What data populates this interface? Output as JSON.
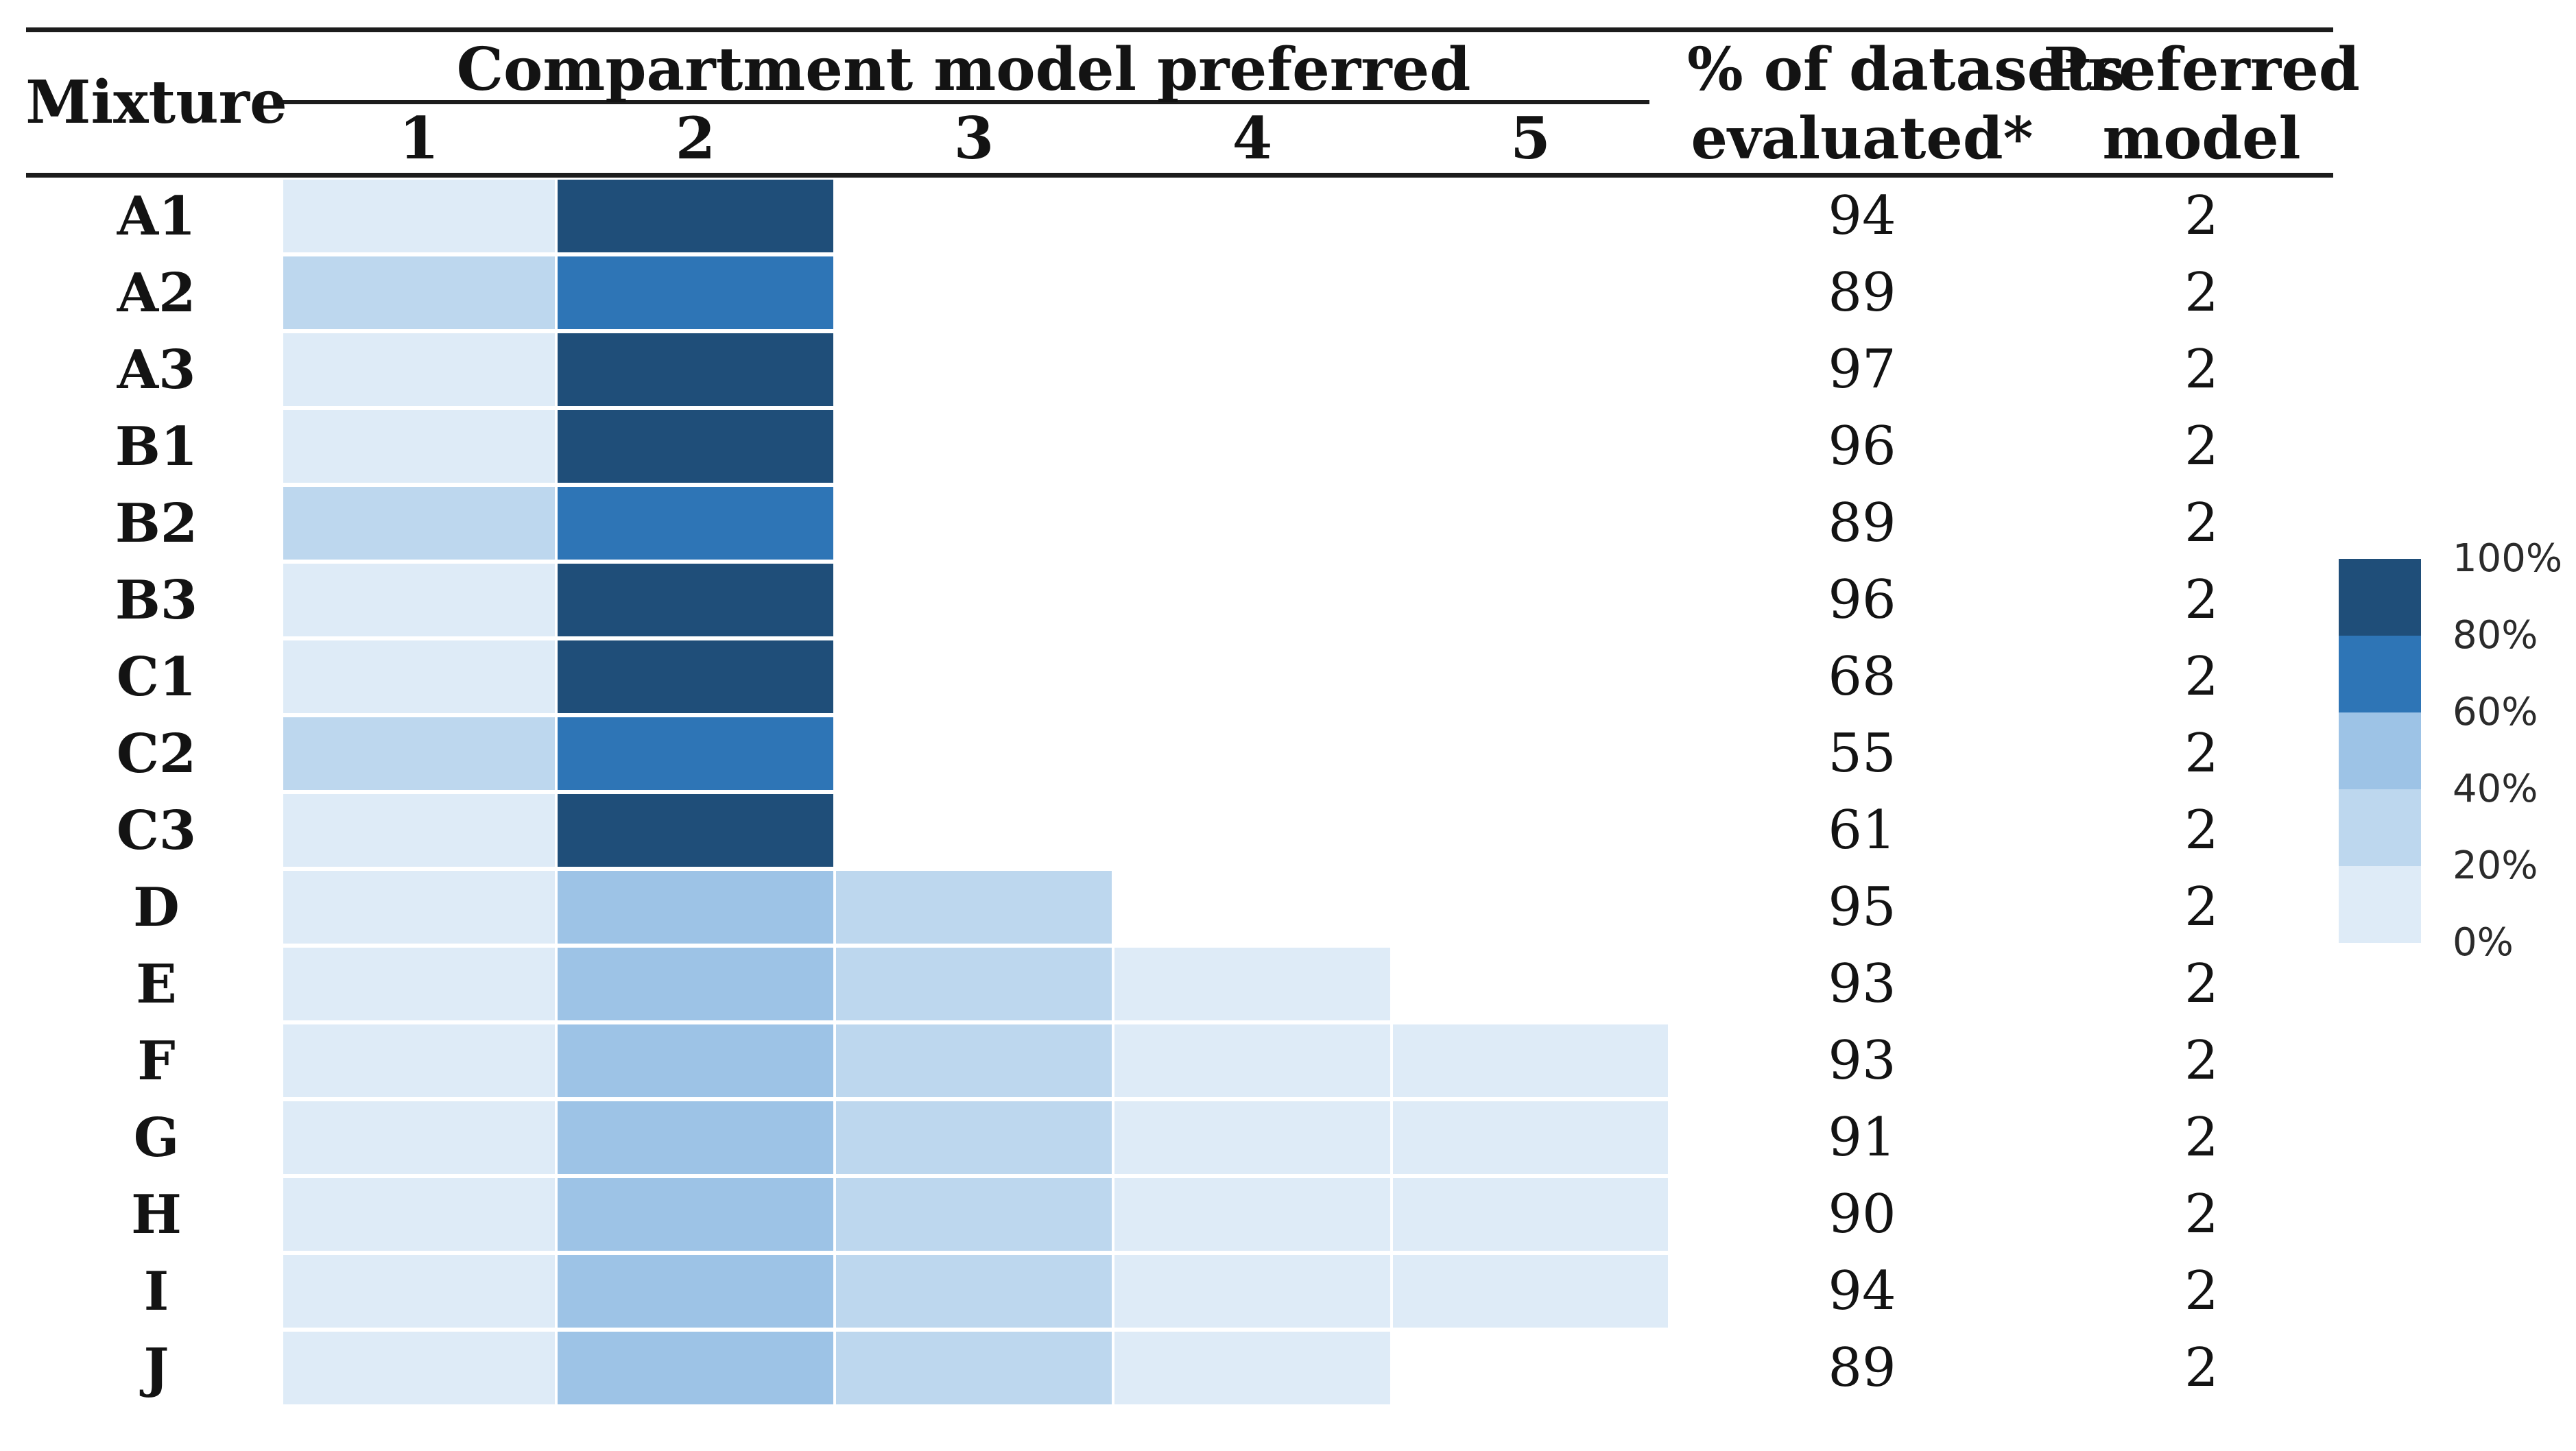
{
  "table": {
    "mixture_header": "Mixture",
    "group_header": "Compartment model preferred",
    "model_columns": [
      "1",
      "2",
      "3",
      "4",
      "5"
    ],
    "datasets_header_line1": "% of datasets",
    "datasets_header_line2": "evaluated*",
    "preferred_header_line1": "Preferred",
    "preferred_header_line2": "model",
    "rows": [
      {
        "mixture": "A1",
        "levels": [
          20,
          100,
          null,
          null,
          null
        ],
        "datasets": "94",
        "preferred": "2"
      },
      {
        "mixture": "A2",
        "levels": [
          40,
          80,
          null,
          null,
          null
        ],
        "datasets": "89",
        "preferred": "2"
      },
      {
        "mixture": "A3",
        "levels": [
          20,
          100,
          null,
          null,
          null
        ],
        "datasets": "97",
        "preferred": "2"
      },
      {
        "mixture": "B1",
        "levels": [
          20,
          100,
          null,
          null,
          null
        ],
        "datasets": "96",
        "preferred": "2"
      },
      {
        "mixture": "B2",
        "levels": [
          40,
          80,
          null,
          null,
          null
        ],
        "datasets": "89",
        "preferred": "2"
      },
      {
        "mixture": "B3",
        "levels": [
          20,
          100,
          null,
          null,
          null
        ],
        "datasets": "96",
        "preferred": "2"
      },
      {
        "mixture": "C1",
        "levels": [
          20,
          100,
          null,
          null,
          null
        ],
        "datasets": "68",
        "preferred": "2"
      },
      {
        "mixture": "C2",
        "levels": [
          40,
          80,
          null,
          null,
          null
        ],
        "datasets": "55",
        "preferred": "2"
      },
      {
        "mixture": "C3",
        "levels": [
          20,
          100,
          null,
          null,
          null
        ],
        "datasets": "61",
        "preferred": "2"
      },
      {
        "mixture": "D",
        "levels": [
          20,
          60,
          40,
          null,
          null
        ],
        "datasets": "95",
        "preferred": "2"
      },
      {
        "mixture": "E",
        "levels": [
          20,
          60,
          40,
          20,
          null
        ],
        "datasets": "93",
        "preferred": "2"
      },
      {
        "mixture": "F",
        "levels": [
          20,
          60,
          40,
          20,
          20
        ],
        "datasets": "93",
        "preferred": "2"
      },
      {
        "mixture": "G",
        "levels": [
          20,
          60,
          40,
          20,
          20
        ],
        "datasets": "91",
        "preferred": "2"
      },
      {
        "mixture": "H",
        "levels": [
          20,
          60,
          40,
          20,
          20
        ],
        "datasets": "90",
        "preferred": "2"
      },
      {
        "mixture": "I",
        "levels": [
          20,
          60,
          40,
          20,
          20
        ],
        "datasets": "94",
        "preferred": "2"
      },
      {
        "mixture": "J",
        "levels": [
          20,
          60,
          40,
          20,
          null
        ],
        "datasets": "89",
        "preferred": "2"
      }
    ]
  },
  "palette": {
    "100": "#1F4E79",
    "80": "#2E75B6",
    "60": "#9DC3E6",
    "40": "#BDD7EE",
    "20": "#DEEBF7"
  },
  "legend": {
    "labels": [
      "100%",
      "80%",
      "60%",
      "40%",
      "20%",
      "0%"
    ],
    "band_colors_top_to_bottom": [
      "#1F4E79",
      "#2E75B6",
      "#9DC3E6",
      "#BDD7EE",
      "#DEEBF7"
    ]
  },
  "chart_data": {
    "type": "heatmap",
    "title": "Compartment model preferred",
    "rows": [
      "A1",
      "A2",
      "A3",
      "B1",
      "B2",
      "B3",
      "C1",
      "C2",
      "C3",
      "D",
      "E",
      "F",
      "G",
      "H",
      "I",
      "J"
    ],
    "columns": [
      "1",
      "2",
      "3",
      "4",
      "5"
    ],
    "values_pct_bucket_upper": [
      [
        20,
        100,
        null,
        null,
        null
      ],
      [
        40,
        80,
        null,
        null,
        null
      ],
      [
        20,
        100,
        null,
        null,
        null
      ],
      [
        20,
        100,
        null,
        null,
        null
      ],
      [
        40,
        80,
        null,
        null,
        null
      ],
      [
        20,
        100,
        null,
        null,
        null
      ],
      [
        20,
        100,
        null,
        null,
        null
      ],
      [
        40,
        80,
        null,
        null,
        null
      ],
      [
        20,
        100,
        null,
        null,
        null
      ],
      [
        20,
        60,
        40,
        null,
        null
      ],
      [
        20,
        60,
        40,
        20,
        null
      ],
      [
        20,
        60,
        40,
        20,
        20
      ],
      [
        20,
        60,
        40,
        20,
        20
      ],
      [
        20,
        60,
        40,
        20,
        20
      ],
      [
        20,
        60,
        40,
        20,
        20
      ],
      [
        20,
        60,
        40,
        20,
        null
      ]
    ],
    "pct_of_datasets_evaluated": [
      94,
      89,
      97,
      96,
      89,
      96,
      68,
      55,
      61,
      95,
      93,
      93,
      91,
      90,
      94,
      89
    ],
    "preferred_model": [
      2,
      2,
      2,
      2,
      2,
      2,
      2,
      2,
      2,
      2,
      2,
      2,
      2,
      2,
      2,
      2
    ],
    "legend_labels": [
      "100%",
      "80%",
      "60%",
      "40%",
      "20%",
      "0%"
    ],
    "colorscale_hex_dark_to_light": [
      "#1F4E79",
      "#2E75B6",
      "#9DC3E6",
      "#BDD7EE",
      "#DEEBF7"
    ],
    "legend_position": "right"
  }
}
